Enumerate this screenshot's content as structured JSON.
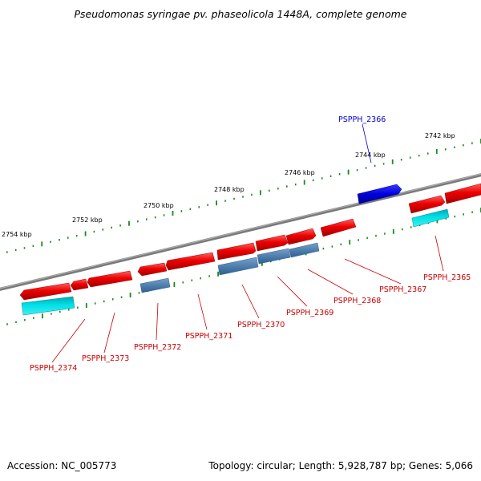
{
  "title": "Pseudomonas syringae pv. phaseolicola 1448A, complete genome",
  "accession_label": "Accession: NC_005773",
  "topology": "Topology: circular",
  "length": "Length: 5,928,787 bp",
  "genes": "Genes: 5,066",
  "ticks": [
    {
      "label": "2742 kbp"
    },
    {
      "label": "2744 kbp"
    },
    {
      "label": "2746 kbp"
    },
    {
      "label": "2748 kbp"
    },
    {
      "label": "2750 kbp"
    },
    {
      "label": "2752 kbp"
    },
    {
      "label": "2754 kbp"
    }
  ],
  "gene_labels": [
    {
      "name": "PSPPH_2366",
      "color": "#0000cc"
    },
    {
      "name": "PSPPH_2365",
      "color": "#cc0000"
    },
    {
      "name": "PSPPH_2367",
      "color": "#cc0000"
    },
    {
      "name": "PSPPH_2368",
      "color": "#cc0000"
    },
    {
      "name": "PSPPH_2369",
      "color": "#cc0000"
    },
    {
      "name": "PSPPH_2370",
      "color": "#cc0000"
    },
    {
      "name": "PSPPH_2371",
      "color": "#cc0000"
    },
    {
      "name": "PSPPH_2372",
      "color": "#cc0000"
    },
    {
      "name": "PSPPH_2373",
      "color": "#cc0000"
    },
    {
      "name": "PSPPH_2374",
      "color": "#cc0000"
    }
  ],
  "colors": {
    "backbone": "#7a7a7a",
    "cds_red": "#ee0000",
    "cds_blue": "#0000dd",
    "rna_cyan": "#00d8e0",
    "misc_steelblue": "#4f7fae",
    "tick_green": "#1a8a1a"
  }
}
